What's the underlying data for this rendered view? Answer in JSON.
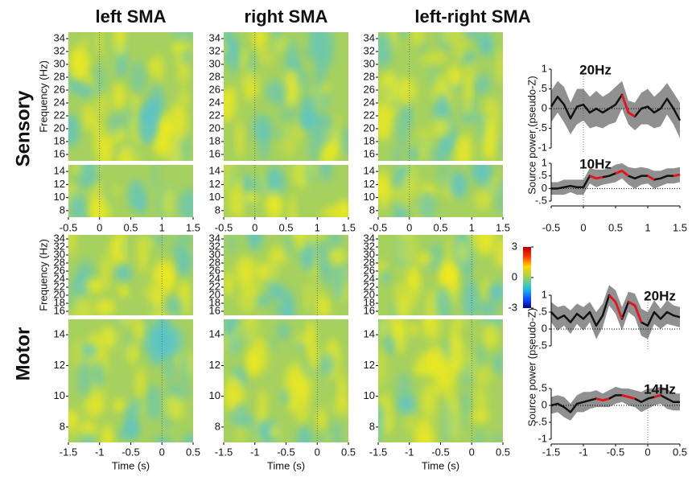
{
  "column_titles": [
    "left SMA",
    "right SMA",
    "left-right SMA"
  ],
  "freq_axis_label": "Frequency (Hz)",
  "time_axis_label": "Time (s)",
  "power_axis_label": "Source power (pseudo-Z)",
  "colorbar": {
    "lim": [
      -3,
      3
    ],
    "ticks": [
      3,
      0,
      -3
    ]
  },
  "rows": [
    {
      "label": "Sensory",
      "xlim": [
        -0.5,
        1.5
      ],
      "xticks": [
        -0.5,
        0,
        0.5,
        1,
        1.5
      ],
      "high_ylim": [
        15,
        35
      ],
      "high_yticks": [
        16,
        18,
        20,
        22,
        24,
        26,
        28,
        30,
        32,
        34
      ],
      "low_ylim": [
        7,
        15
      ],
      "low_yticks": [
        8,
        10,
        12,
        14
      ],
      "traces": [
        {
          "title": "20Hz",
          "ylim": [
            -1,
            1
          ],
          "yticks": [
            {
              "value": 1,
              "label": "1"
            },
            {
              "value": 0.5,
              "label": ".5"
            },
            {
              "value": 0,
              "label": "0"
            },
            {
              "value": -0.5,
              "label": "-.5"
            },
            {
              "value": -1,
              "label": "-1"
            }
          ],
          "x": [
            -0.5,
            -0.4,
            -0.3,
            -0.2,
            -0.1,
            0,
            0.1,
            0.2,
            0.3,
            0.4,
            0.5,
            0.6,
            0.7,
            0.8,
            0.9,
            1,
            1.1,
            1.2,
            1.3,
            1.4,
            1.5
          ],
          "values": [
            0.05,
            0.3,
            0.1,
            -0.25,
            0.05,
            0.1,
            -0.1,
            0,
            -0.1,
            0,
            0.1,
            0.35,
            -0.1,
            -0.2,
            0,
            0.05,
            -0.1,
            0,
            0.25,
            0,
            -0.3
          ],
          "error": [
            0.4,
            0.4,
            0.45,
            0.4,
            0.45,
            0.4,
            0.4,
            0.45,
            0.4,
            0.4,
            0.45,
            0.35,
            0.3,
            0.35,
            0.4,
            0.45,
            0.4,
            0.45,
            0.4,
            0.4,
            0.45
          ],
          "significant": [
            [
              0.55,
              0.8
            ]
          ]
        },
        {
          "title": "10Hz",
          "ylim": [
            -0.5,
            1
          ],
          "yticks": [
            {
              "value": 1,
              "label": "1"
            },
            {
              "value": 0.5,
              "label": ".5"
            },
            {
              "value": 0,
              "label": "0"
            },
            {
              "value": -0.5,
              "label": "-.5"
            }
          ],
          "x": [
            -0.5,
            -0.4,
            -0.3,
            -0.2,
            -0.1,
            0,
            0.1,
            0.2,
            0.3,
            0.4,
            0.5,
            0.6,
            0.7,
            0.8,
            0.9,
            1,
            1.1,
            1.2,
            1.3,
            1.4,
            1.5
          ],
          "values": [
            0,
            0,
            0.05,
            0.1,
            0.05,
            0.05,
            0.5,
            0.4,
            0.45,
            0.5,
            0.6,
            0.7,
            0.5,
            0.4,
            0.5,
            0.5,
            0.35,
            0.4,
            0.5,
            0.5,
            0.55
          ],
          "error": [
            0.25,
            0.25,
            0.3,
            0.25,
            0.3,
            0.3,
            0.3,
            0.35,
            0.3,
            0.3,
            0.35,
            0.3,
            0.35,
            0.4,
            0.35,
            0.3,
            0.35,
            0.3,
            0.3,
            0.3,
            0.3
          ],
          "significant": [
            [
              0.1,
              0.3
            ],
            [
              0.5,
              0.7
            ],
            [
              1.0,
              1.1
            ],
            [
              1.4,
              1.5
            ]
          ]
        }
      ]
    },
    {
      "label": "Motor",
      "xlim": [
        -1.5,
        0.5
      ],
      "xticks": [
        -1.5,
        -1,
        -0.5,
        0,
        0.5
      ],
      "high_ylim": [
        15,
        35
      ],
      "high_yticks": [
        16,
        18,
        20,
        22,
        24,
        26,
        28,
        30,
        32,
        34
      ],
      "low_ylim": [
        7,
        15
      ],
      "low_yticks": [
        8,
        10,
        12,
        14
      ],
      "traces": [
        {
          "title": "20Hz",
          "ylim": [
            -0.5,
            1
          ],
          "yticks": [
            {
              "value": 1,
              "label": "1"
            },
            {
              "value": 0.5,
              "label": ".5"
            },
            {
              "value": 0,
              "label": "0"
            },
            {
              "value": -0.5,
              "label": "-.5"
            }
          ],
          "x": [
            -1.5,
            -1.4,
            -1.3,
            -1.2,
            -1.1,
            -1,
            -0.9,
            -0.8,
            -0.7,
            -0.6,
            -0.5,
            -0.4,
            -0.3,
            -0.2,
            -0.1,
            0,
            0.1,
            0.2,
            0.3,
            0.4,
            0.5
          ],
          "values": [
            0.5,
            0.3,
            0.4,
            0.2,
            0.45,
            0.3,
            0.5,
            0.1,
            0.4,
            1.0,
            0.8,
            0.3,
            0.8,
            0.7,
            0.2,
            0.1,
            0.5,
            0.3,
            0.5,
            0.4,
            0.35
          ],
          "error": [
            0.3,
            0.35,
            0.3,
            0.35,
            0.3,
            0.35,
            0.3,
            0.4,
            0.35,
            0.3,
            0.35,
            0.35,
            0.3,
            0.35,
            0.4,
            0.4,
            0.35,
            0.3,
            0.35,
            0.3,
            0.3
          ],
          "significant": [
            [
              -0.6,
              -0.4
            ],
            [
              -0.3,
              -0.1
            ]
          ]
        },
        {
          "title": "14Hz",
          "ylim": [
            -1,
            0.5
          ],
          "yticks": [
            {
              "value": 0.5,
              "label": ".5"
            },
            {
              "value": 0,
              "label": "0"
            },
            {
              "value": -0.5,
              "label": "-.5"
            },
            {
              "value": -1,
              "label": "-1"
            }
          ],
          "x": [
            -1.5,
            -1.4,
            -1.3,
            -1.2,
            -1.1,
            -1,
            -0.9,
            -0.8,
            -0.7,
            -0.6,
            -0.5,
            -0.4,
            -0.3,
            -0.2,
            -0.1,
            0,
            0.1,
            0.2,
            0.3,
            0.4,
            0.5
          ],
          "values": [
            0,
            0.05,
            -0.05,
            -0.2,
            0.05,
            0.1,
            0.15,
            0.2,
            0.15,
            0.2,
            0.3,
            0.3,
            0.25,
            0.2,
            0.1,
            0.2,
            0.25,
            0.3,
            0.2,
            0.1,
            0.1
          ],
          "error": [
            0.25,
            0.25,
            0.3,
            0.25,
            0.25,
            0.3,
            0.25,
            0.25,
            0.2,
            0.25,
            0.25,
            0.2,
            0.25,
            0.25,
            0.3,
            0.3,
            0.25,
            0.25,
            0.3,
            0.25,
            0.25
          ],
          "significant": [
            [
              -0.8,
              -0.6
            ],
            [
              -0.4,
              -0.2
            ],
            [
              0.1,
              0.2
            ]
          ]
        }
      ]
    }
  ]
}
